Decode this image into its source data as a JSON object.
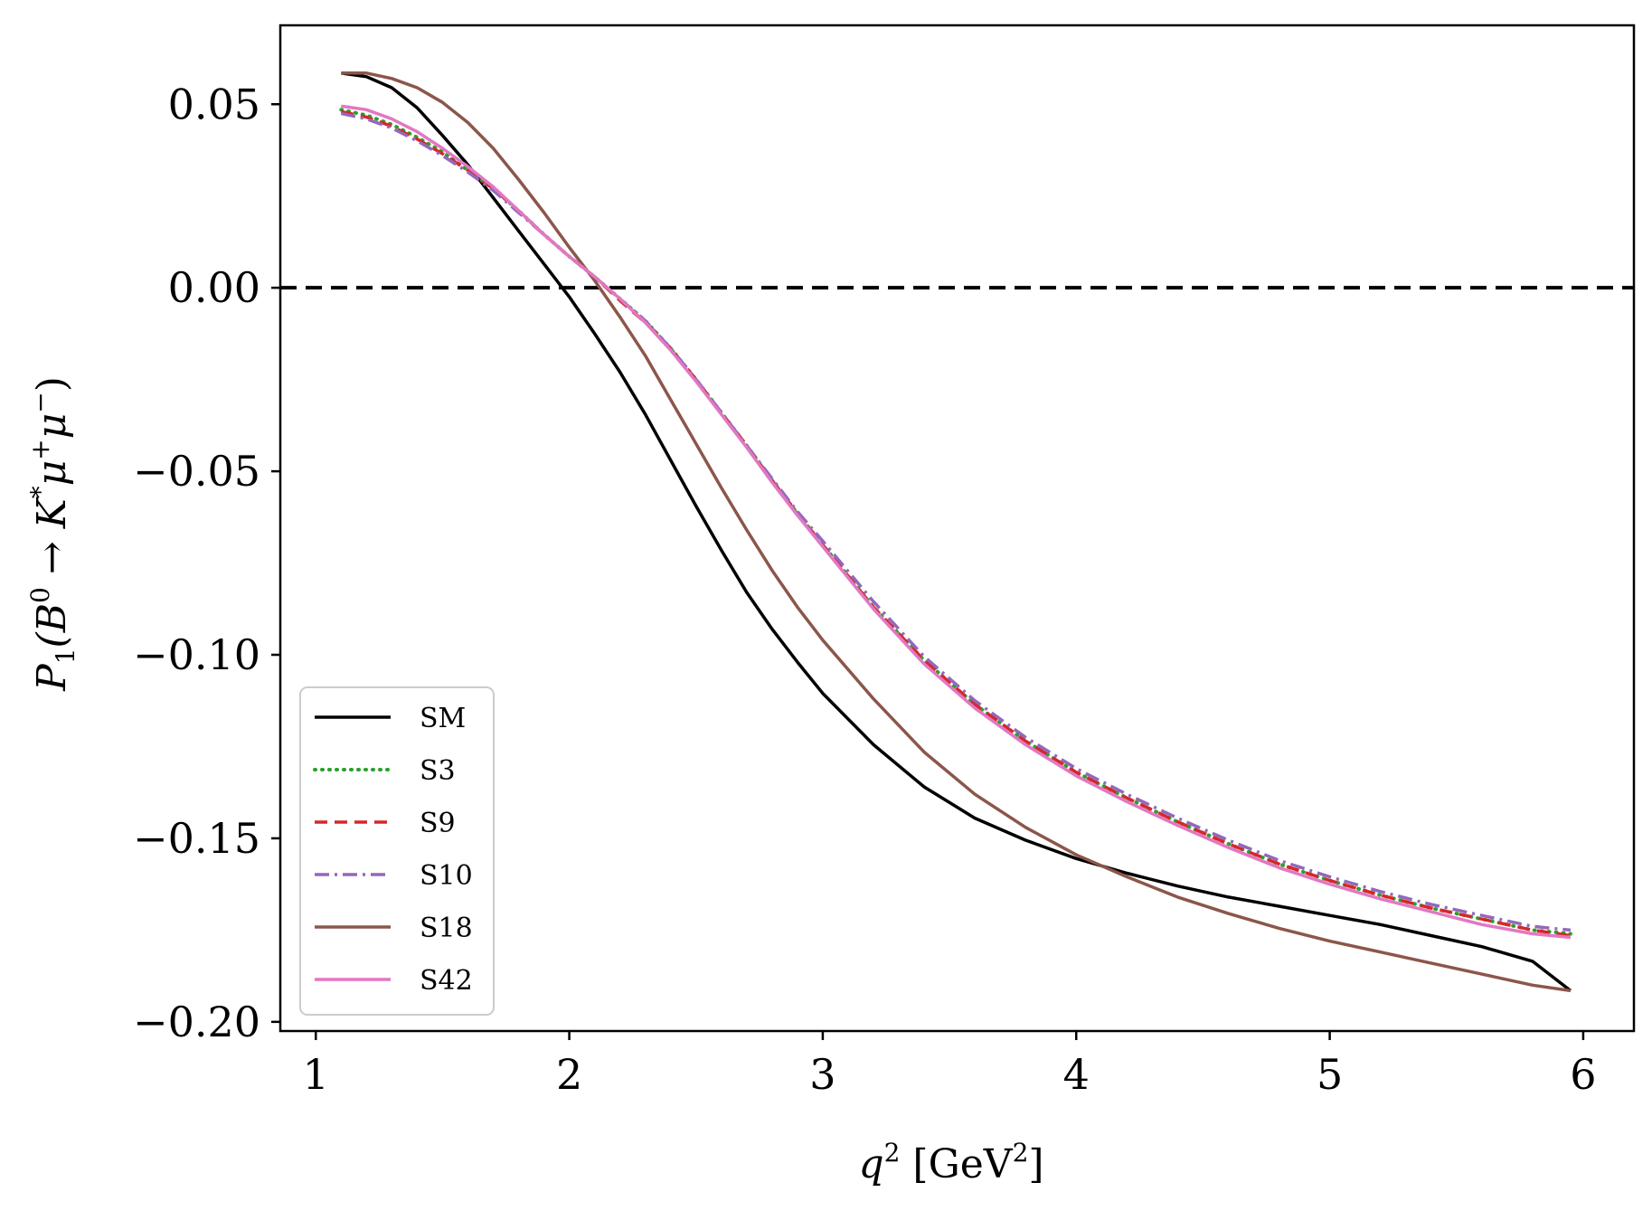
{
  "chart_data": {
    "type": "line",
    "title": "",
    "xlabel": "q^2 [GeV^2]",
    "xlabel_parts": {
      "var": "q",
      "sup": "2",
      "unit_open": " [GeV",
      "unit_sup": "2",
      "unit_close": "]"
    },
    "ylabel": "P_1(B^0 → K^*μ^+μ^−)",
    "ylabel_parts": {
      "p": "P",
      "p_sub": "1",
      "open": "(B",
      "b_sup": "0",
      "arrow": " → K",
      "k_sup": "*",
      "mu1": "μ",
      "mu1_sup": "+",
      "mu2": "μ",
      "mu2_sup": "−",
      "close": ")"
    },
    "xlim": [
      0.86,
      6.2
    ],
    "ylim": [
      -0.2025,
      0.0715
    ],
    "xticks": [
      1,
      2,
      3,
      4,
      5,
      6
    ],
    "xtick_labels": [
      "1",
      "2",
      "3",
      "4",
      "5",
      "6"
    ],
    "yticks": [
      0.05,
      0.0,
      -0.05,
      -0.1,
      -0.15,
      -0.2
    ],
    "ytick_labels": [
      "0.05",
      "0.00",
      "−0.05",
      "−0.10",
      "−0.15",
      "−0.20"
    ],
    "reference_line": {
      "y": 0.0,
      "style": "dashed",
      "color": "#000000"
    },
    "grid": false,
    "legend_position": "lower-left",
    "x": [
      1.1,
      1.2,
      1.3,
      1.4,
      1.5,
      1.6,
      1.7,
      1.8,
      1.9,
      2.0,
      2.1,
      2.2,
      2.3,
      2.4,
      2.5,
      2.6,
      2.7,
      2.8,
      2.9,
      3.0,
      3.2,
      3.4,
      3.6,
      3.8,
      4.0,
      4.2,
      4.4,
      4.6,
      4.8,
      5.0,
      5.2,
      5.4,
      5.6,
      5.8,
      5.95
    ],
    "series": [
      {
        "name": "SM",
        "color": "#000000",
        "dash": "solid",
        "values": [
          0.0585,
          0.0575,
          0.0545,
          0.049,
          0.0415,
          0.0335,
          0.0245,
          0.0155,
          0.0065,
          -0.0025,
          -0.0125,
          -0.023,
          -0.0345,
          -0.047,
          -0.0595,
          -0.0715,
          -0.083,
          -0.093,
          -0.102,
          -0.1105,
          -0.1245,
          -0.136,
          -0.1445,
          -0.1505,
          -0.1555,
          -0.1595,
          -0.163,
          -0.166,
          -0.1685,
          -0.171,
          -0.1735,
          -0.1765,
          -0.1795,
          -0.1835,
          -0.1915
        ]
      },
      {
        "name": "S3",
        "color": "#2ca02c",
        "dash": "dotted",
        "values": [
          0.0485,
          0.047,
          0.0445,
          0.041,
          0.037,
          0.032,
          0.027,
          0.021,
          0.0145,
          0.0085,
          0.003,
          -0.003,
          -0.009,
          -0.0165,
          -0.025,
          -0.034,
          -0.043,
          -0.0525,
          -0.0615,
          -0.07,
          -0.087,
          -0.1015,
          -0.1135,
          -0.1235,
          -0.132,
          -0.139,
          -0.1455,
          -0.1515,
          -0.157,
          -0.1615,
          -0.1655,
          -0.169,
          -0.172,
          -0.175,
          -0.176
        ]
      },
      {
        "name": "S9",
        "color": "#d62728",
        "dash": "dashed",
        "values": [
          0.048,
          0.0465,
          0.044,
          0.0405,
          0.0365,
          0.032,
          0.027,
          0.021,
          0.0145,
          0.0085,
          0.003,
          -0.0035,
          -0.0095,
          -0.0165,
          -0.025,
          -0.034,
          -0.043,
          -0.0525,
          -0.0615,
          -0.07,
          -0.087,
          -0.1015,
          -0.1135,
          -0.1235,
          -0.132,
          -0.139,
          -0.1455,
          -0.1515,
          -0.157,
          -0.1615,
          -0.1655,
          -0.169,
          -0.172,
          -0.175,
          -0.1765
        ]
      },
      {
        "name": "S10",
        "color": "#9467bd",
        "dash": "dashdot",
        "values": [
          0.0475,
          0.046,
          0.0435,
          0.04,
          0.036,
          0.0315,
          0.0265,
          0.0205,
          0.0145,
          0.0085,
          0.003,
          -0.003,
          -0.009,
          -0.0165,
          -0.025,
          -0.034,
          -0.043,
          -0.052,
          -0.061,
          -0.069,
          -0.0855,
          -0.1005,
          -0.1125,
          -0.1225,
          -0.131,
          -0.138,
          -0.1445,
          -0.1505,
          -0.156,
          -0.1605,
          -0.1645,
          -0.168,
          -0.171,
          -0.174,
          -0.175
        ]
      },
      {
        "name": "S18",
        "color": "#8c564b",
        "dash": "solid",
        "values": [
          0.0585,
          0.0585,
          0.057,
          0.0545,
          0.0505,
          0.045,
          0.038,
          0.0295,
          0.0205,
          0.011,
          0.002,
          -0.008,
          -0.0185,
          -0.0305,
          -0.0425,
          -0.0545,
          -0.066,
          -0.077,
          -0.087,
          -0.096,
          -0.112,
          -0.1265,
          -0.138,
          -0.147,
          -0.1545,
          -0.1605,
          -0.166,
          -0.1705,
          -0.1745,
          -0.178,
          -0.181,
          -0.184,
          -0.187,
          -0.19,
          -0.1915
        ]
      },
      {
        "name": "S42",
        "color": "#e377c2",
        "dash": "solid",
        "values": [
          0.0495,
          0.0485,
          0.046,
          0.0425,
          0.038,
          0.033,
          0.0275,
          0.021,
          0.0145,
          0.0085,
          0.003,
          -0.003,
          -0.0095,
          -0.017,
          -0.0255,
          -0.0345,
          -0.0435,
          -0.053,
          -0.062,
          -0.0705,
          -0.0875,
          -0.1025,
          -0.1145,
          -0.1245,
          -0.133,
          -0.14,
          -0.1465,
          -0.1525,
          -0.158,
          -0.1625,
          -0.1665,
          -0.17,
          -0.1735,
          -0.176,
          -0.177
        ]
      }
    ]
  }
}
